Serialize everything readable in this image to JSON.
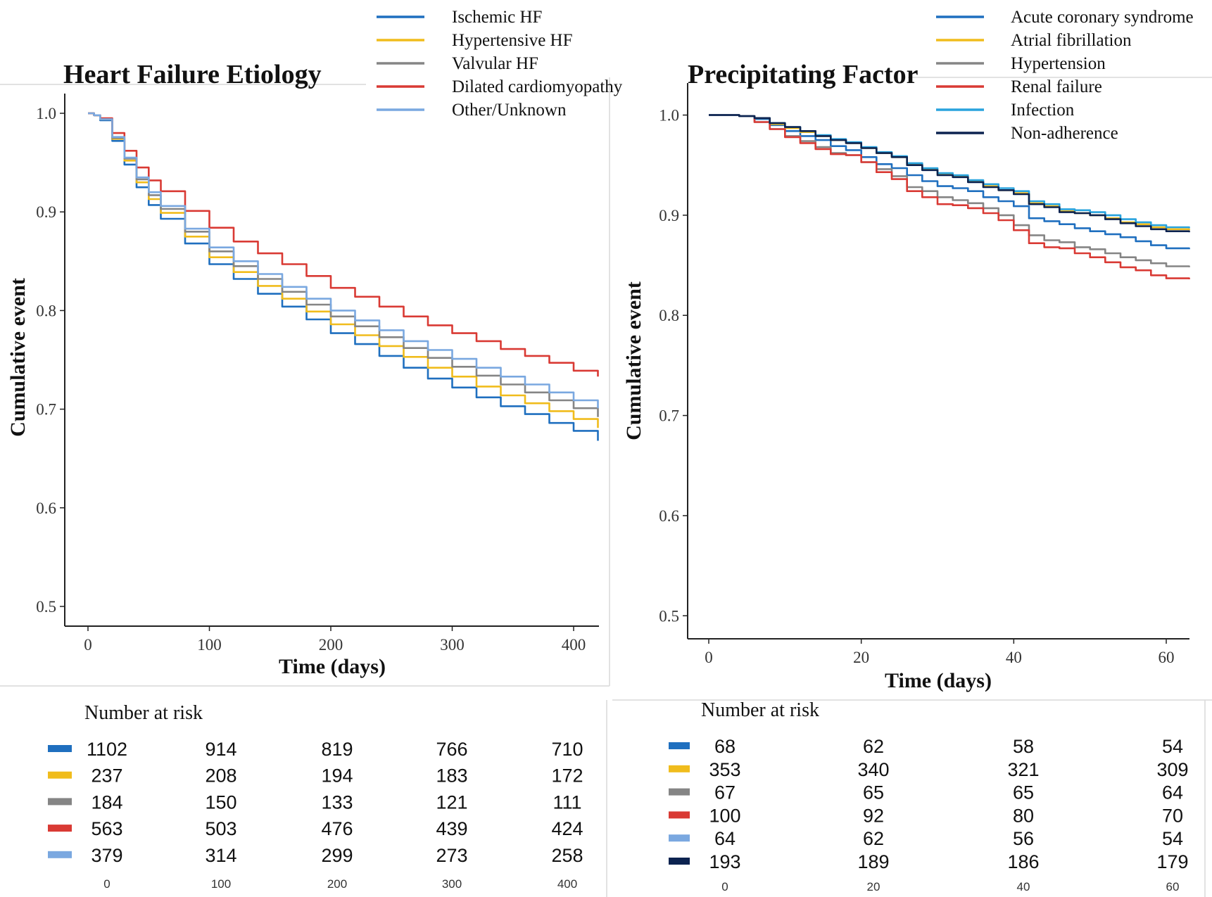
{
  "chart_data": [
    {
      "type": "line",
      "title": "Heart Failure Etiology",
      "xlabel": "Time (days)",
      "ylabel": "Cumulative event",
      "xlim": [
        -20,
        420
      ],
      "ylim": [
        0.48,
        1.02
      ],
      "x_ticks": [
        0,
        100,
        200,
        300,
        400
      ],
      "y_ticks": [
        0.5,
        0.6,
        0.7,
        0.8,
        0.9,
        1.0
      ],
      "grid": false,
      "legend_position": "top",
      "series": [
        {
          "name": "Ischemic HF",
          "color": "#1f6fbf",
          "x": [
            0,
            5,
            10,
            20,
            30,
            40,
            50,
            60,
            80,
            100,
            120,
            140,
            160,
            180,
            200,
            220,
            240,
            260,
            280,
            300,
            320,
            340,
            360,
            380,
            400,
            420
          ],
          "y": [
            1.0,
            0.998,
            0.993,
            0.972,
            0.948,
            0.925,
            0.907,
            0.893,
            0.868,
            0.847,
            0.832,
            0.817,
            0.804,
            0.791,
            0.777,
            0.766,
            0.754,
            0.742,
            0.731,
            0.722,
            0.712,
            0.703,
            0.695,
            0.686,
            0.678,
            0.668
          ]
        },
        {
          "name": "Hypertensive HF",
          "color": "#f0bc1c",
          "x": [
            0,
            5,
            10,
            20,
            30,
            40,
            50,
            60,
            80,
            100,
            120,
            140,
            160,
            180,
            200,
            220,
            240,
            260,
            280,
            300,
            320,
            340,
            360,
            380,
            400,
            420
          ],
          "y": [
            1.0,
            0.998,
            0.994,
            0.974,
            0.952,
            0.93,
            0.913,
            0.899,
            0.875,
            0.854,
            0.839,
            0.825,
            0.812,
            0.799,
            0.786,
            0.775,
            0.764,
            0.753,
            0.742,
            0.733,
            0.723,
            0.714,
            0.706,
            0.698,
            0.69,
            0.681
          ]
        },
        {
          "name": "Valvular HF",
          "color": "#858585",
          "x": [
            0,
            5,
            10,
            20,
            30,
            40,
            50,
            60,
            80,
            100,
            120,
            140,
            160,
            180,
            200,
            220,
            240,
            260,
            280,
            300,
            320,
            340,
            360,
            380,
            400,
            420
          ],
          "y": [
            1.0,
            0.998,
            0.994,
            0.975,
            0.954,
            0.933,
            0.917,
            0.903,
            0.88,
            0.86,
            0.845,
            0.832,
            0.819,
            0.806,
            0.794,
            0.784,
            0.773,
            0.762,
            0.752,
            0.743,
            0.734,
            0.725,
            0.717,
            0.709,
            0.701,
            0.692
          ]
        },
        {
          "name": "Dilated cardiomyopathy",
          "color": "#d93a34",
          "x": [
            0,
            5,
            10,
            20,
            30,
            40,
            50,
            60,
            80,
            100,
            120,
            140,
            160,
            180,
            200,
            220,
            240,
            260,
            280,
            300,
            320,
            340,
            360,
            380,
            400,
            420
          ],
          "y": [
            1.0,
            0.998,
            0.995,
            0.98,
            0.962,
            0.945,
            0.932,
            0.921,
            0.901,
            0.884,
            0.87,
            0.858,
            0.847,
            0.835,
            0.823,
            0.814,
            0.804,
            0.794,
            0.785,
            0.777,
            0.769,
            0.761,
            0.754,
            0.747,
            0.739,
            0.733
          ]
        },
        {
          "name": "Other/Unknown",
          "color": "#7aa8e0",
          "x": [
            0,
            5,
            10,
            20,
            30,
            40,
            50,
            60,
            80,
            100,
            120,
            140,
            160,
            180,
            200,
            220,
            240,
            260,
            280,
            300,
            320,
            340,
            360,
            380,
            400,
            420
          ],
          "y": [
            1.0,
            0.998,
            0.994,
            0.976,
            0.955,
            0.935,
            0.92,
            0.906,
            0.883,
            0.864,
            0.85,
            0.837,
            0.824,
            0.812,
            0.8,
            0.79,
            0.78,
            0.769,
            0.76,
            0.751,
            0.742,
            0.733,
            0.725,
            0.717,
            0.709,
            0.701
          ]
        }
      ],
      "number_at_risk": {
        "title": "Number at risk",
        "x_ticks": [
          0,
          100,
          200,
          300,
          400
        ],
        "rows": [
          {
            "color": "#1f6fbf",
            "values": [
              1102,
              914,
              819,
              766,
              710
            ]
          },
          {
            "color": "#f0bc1c",
            "values": [
              237,
              208,
              194,
              183,
              172
            ]
          },
          {
            "color": "#858585",
            "values": [
              184,
              150,
              133,
              121,
              111
            ]
          },
          {
            "color": "#d93a34",
            "values": [
              563,
              503,
              476,
              439,
              424
            ]
          },
          {
            "color": "#7aa8e0",
            "values": [
              379,
              314,
              299,
              273,
              258
            ]
          }
        ]
      }
    },
    {
      "type": "line",
      "title": "Precipitating Factor",
      "xlabel": "Time (days)",
      "ylabel": "Cumulative event",
      "xlim": [
        -3,
        63
      ],
      "ylim": [
        0.477,
        1.032
      ],
      "x_ticks": [
        0,
        20,
        40,
        60
      ],
      "y_ticks": [
        0.5,
        0.6,
        0.7,
        0.8,
        0.9,
        1.0
      ],
      "grid": false,
      "legend_position": "top-right",
      "series": [
        {
          "name": "Acute coronary syndrome",
          "color": "#1f6fbf",
          "x": [
            0,
            4,
            6,
            8,
            10,
            12,
            14,
            16,
            18,
            20,
            22,
            24,
            26,
            28,
            30,
            32,
            34,
            36,
            38,
            40,
            42,
            44,
            46,
            48,
            50,
            52,
            54,
            56,
            58,
            60,
            63
          ],
          "y": [
            1.0,
            0.999,
            0.996,
            0.99,
            0.984,
            0.979,
            0.975,
            0.969,
            0.965,
            0.958,
            0.951,
            0.947,
            0.94,
            0.934,
            0.929,
            0.927,
            0.924,
            0.918,
            0.914,
            0.909,
            0.897,
            0.894,
            0.891,
            0.887,
            0.884,
            0.881,
            0.878,
            0.874,
            0.87,
            0.867,
            0.866
          ]
        },
        {
          "name": "Atrial fibrillation",
          "color": "#f0bc1c",
          "x": [
            0,
            4,
            6,
            8,
            10,
            12,
            14,
            16,
            18,
            20,
            22,
            24,
            26,
            28,
            30,
            32,
            34,
            36,
            38,
            40,
            42,
            44,
            46,
            48,
            50,
            52,
            54,
            56,
            58,
            60,
            63
          ],
          "y": [
            1.0,
            0.999,
            0.997,
            0.991,
            0.987,
            0.983,
            0.979,
            0.975,
            0.972,
            0.967,
            0.962,
            0.958,
            0.951,
            0.946,
            0.941,
            0.939,
            0.934,
            0.929,
            0.925,
            0.922,
            0.912,
            0.909,
            0.904,
            0.902,
            0.9,
            0.897,
            0.893,
            0.891,
            0.888,
            0.886,
            0.885
          ]
        },
        {
          "name": "Hypertension",
          "color": "#858585",
          "x": [
            0,
            4,
            6,
            8,
            10,
            12,
            14,
            16,
            18,
            20,
            22,
            24,
            26,
            28,
            30,
            32,
            34,
            36,
            38,
            40,
            42,
            44,
            46,
            48,
            50,
            52,
            54,
            56,
            58,
            60,
            63
          ],
          "y": [
            1.0,
            0.999,
            0.993,
            0.986,
            0.979,
            0.974,
            0.968,
            0.962,
            0.96,
            0.953,
            0.946,
            0.939,
            0.928,
            0.924,
            0.918,
            0.915,
            0.912,
            0.907,
            0.9,
            0.89,
            0.88,
            0.875,
            0.873,
            0.868,
            0.866,
            0.862,
            0.858,
            0.855,
            0.852,
            0.849,
            0.848
          ]
        },
        {
          "name": "Renal failure",
          "color": "#d93a34",
          "x": [
            0,
            4,
            6,
            8,
            10,
            12,
            14,
            16,
            18,
            20,
            22,
            24,
            26,
            28,
            30,
            32,
            34,
            36,
            38,
            40,
            42,
            44,
            46,
            48,
            50,
            52,
            54,
            56,
            58,
            60,
            63
          ],
          "y": [
            1.0,
            0.999,
            0.993,
            0.986,
            0.978,
            0.972,
            0.966,
            0.961,
            0.96,
            0.953,
            0.943,
            0.936,
            0.924,
            0.918,
            0.911,
            0.91,
            0.907,
            0.902,
            0.895,
            0.885,
            0.872,
            0.868,
            0.867,
            0.862,
            0.858,
            0.853,
            0.848,
            0.845,
            0.84,
            0.837,
            0.836
          ]
        },
        {
          "name": "Infection",
          "color": "#29a3dd",
          "x": [
            0,
            4,
            6,
            8,
            10,
            12,
            14,
            16,
            18,
            20,
            22,
            24,
            26,
            28,
            30,
            32,
            34,
            36,
            38,
            40,
            42,
            44,
            46,
            48,
            50,
            52,
            54,
            56,
            58,
            60,
            63
          ],
          "y": [
            1.0,
            0.999,
            0.997,
            0.992,
            0.988,
            0.984,
            0.98,
            0.976,
            0.973,
            0.968,
            0.963,
            0.959,
            0.952,
            0.947,
            0.942,
            0.94,
            0.935,
            0.931,
            0.927,
            0.924,
            0.914,
            0.911,
            0.906,
            0.905,
            0.903,
            0.9,
            0.896,
            0.893,
            0.89,
            0.888,
            0.887
          ]
        },
        {
          "name": "Non-adherence",
          "color": "#0c2350",
          "x": [
            0,
            4,
            6,
            8,
            10,
            12,
            14,
            16,
            18,
            20,
            22,
            24,
            26,
            28,
            30,
            32,
            34,
            36,
            38,
            40,
            42,
            44,
            46,
            48,
            50,
            52,
            54,
            56,
            58,
            60,
            63
          ],
          "y": [
            1.0,
            0.999,
            0.997,
            0.992,
            0.988,
            0.984,
            0.979,
            0.975,
            0.972,
            0.967,
            0.962,
            0.958,
            0.95,
            0.945,
            0.94,
            0.938,
            0.933,
            0.928,
            0.925,
            0.921,
            0.911,
            0.908,
            0.903,
            0.902,
            0.9,
            0.896,
            0.892,
            0.889,
            0.886,
            0.884,
            0.883
          ]
        }
      ],
      "number_at_risk": {
        "title": "Number at risk",
        "x_ticks": [
          0,
          20,
          40,
          60
        ],
        "rows": [
          {
            "color": "#1f6fbf",
            "values": [
              68,
              62,
              58,
              54
            ]
          },
          {
            "color": "#f0bc1c",
            "values": [
              353,
              340,
              321,
              309
            ]
          },
          {
            "color": "#858585",
            "values": [
              67,
              65,
              65,
              64
            ]
          },
          {
            "color": "#d93a34",
            "values": [
              100,
              92,
              80,
              70
            ]
          },
          {
            "color": "#7aa8e0",
            "values": [
              64,
              62,
              56,
              54
            ]
          },
          {
            "color": "#0c2350",
            "values": [
              193,
              189,
              186,
              179
            ]
          }
        ]
      }
    }
  ]
}
